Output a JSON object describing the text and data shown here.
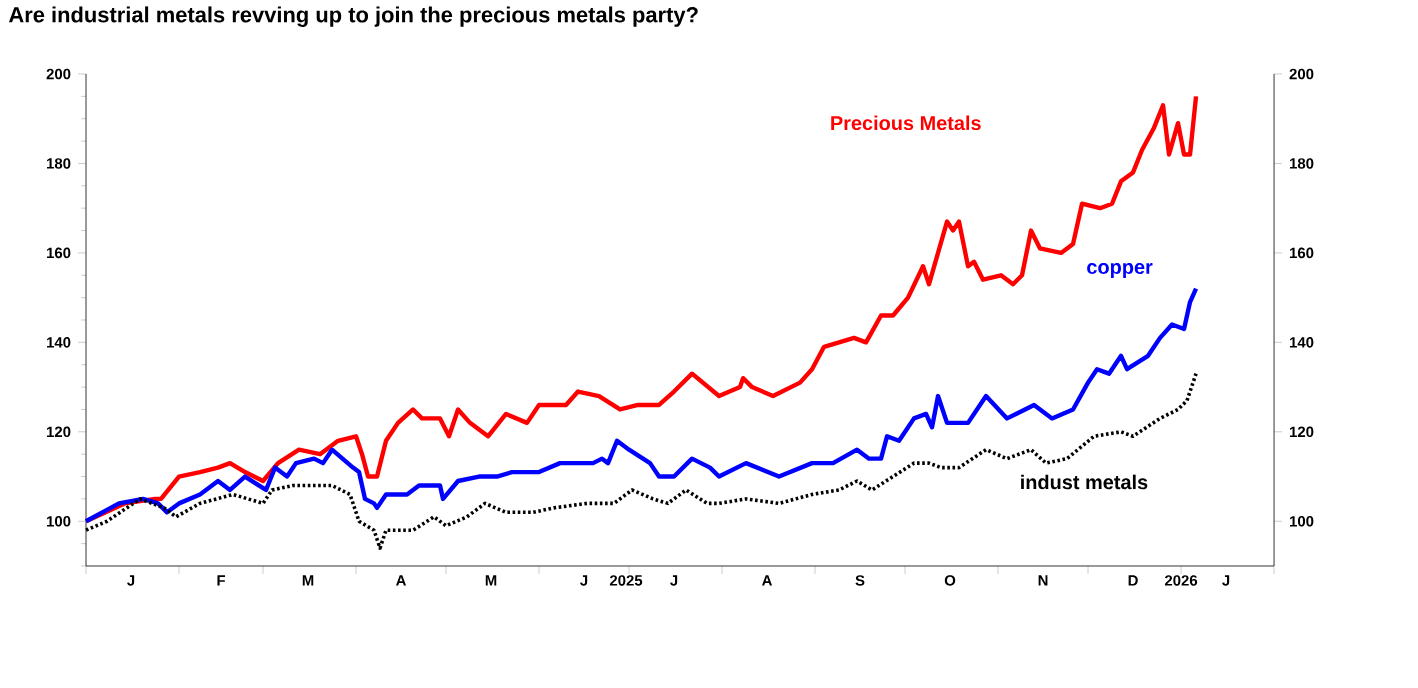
{
  "chart_data": {
    "type": "line",
    "title": "Are industrial metals revving up to join the precious metals party?",
    "xlim": [
      "2025-01-01",
      "2026-02-01"
    ],
    "xticks": [
      {
        "value": "2025-01-01",
        "label": null
      },
      {
        "value": "2025-02-01",
        "label": null
      },
      {
        "value": "2025-03-01",
        "label": null
      },
      {
        "value": "2025-04-01",
        "label": null
      },
      {
        "value": "2025-05-01",
        "label": null
      },
      {
        "value": "2025-06-01",
        "label": null
      },
      {
        "value": "2025-07-01",
        "label": null
      },
      {
        "value": "2025-08-01",
        "label": null
      },
      {
        "value": "2025-09-01",
        "label": null
      },
      {
        "value": "2025-10-01",
        "label": null
      },
      {
        "value": "2025-11-01",
        "label": null
      },
      {
        "value": "2025-12-01",
        "label": null
      },
      {
        "value": "2026-01-01",
        "label": null
      },
      {
        "value": "2026-02-01",
        "label": null
      },
      {
        "value": "2025-01-16",
        "label": "J"
      },
      {
        "value": "2025-02-15",
        "label": "F"
      },
      {
        "value": "2025-03-16",
        "label": "M"
      },
      {
        "value": "2025-04-16",
        "label": "A"
      },
      {
        "value": "2025-05-16",
        "label": "M"
      },
      {
        "value": "2025-06-16",
        "label": "J"
      },
      {
        "value": "2025-07-16",
        "label": "J"
      },
      {
        "value": "2025-08-16",
        "label": "A"
      },
      {
        "value": "2025-09-16",
        "label": "S"
      },
      {
        "value": "2025-10-16",
        "label": "O"
      },
      {
        "value": "2025-11-16",
        "label": "N"
      },
      {
        "value": "2025-12-16",
        "label": "D"
      },
      {
        "value": "2026-01-16",
        "label": "J"
      },
      {
        "value": "2025-06-30",
        "label": "2025"
      },
      {
        "value": "2026-01-01",
        "label": "2026"
      }
    ],
    "ylim": [
      90,
      200
    ],
    "yticks": [
      100,
      120,
      140,
      160,
      180,
      200,
      {
        "value": 90,
        "label": null
      },
      {
        "value": 95,
        "label": null
      },
      {
        "value": 105,
        "label": null
      },
      {
        "value": 110,
        "label": null
      },
      {
        "value": 115,
        "label": null
      },
      {
        "value": 125,
        "label": null
      },
      {
        "value": 130,
        "label": null
      },
      {
        "value": 135,
        "label": null
      },
      {
        "value": 145,
        "label": null
      },
      {
        "value": 150,
        "label": null
      },
      {
        "value": 155,
        "label": null
      },
      {
        "value": 165,
        "label": null
      },
      {
        "value": 170,
        "label": null
      },
      {
        "value": 175,
        "label": null
      },
      {
        "value": 185,
        "label": null
      },
      {
        "value": 190,
        "label": null
      },
      {
        "value": 195,
        "label": null
      }
    ],
    "y2lim": [
      90,
      200
    ],
    "y2ticks": [
      100,
      120,
      140,
      160,
      180,
      200
    ],
    "series": [
      {
        "name": "Precious Metals",
        "color": "#ff0000",
        "line_style": "solid",
        "x": [
          "2025-01-01",
          "2025-01-14",
          "2025-01-24",
          "2025-01-26",
          "2025-02-01",
          "2025-02-08",
          "2025-02-14",
          "2025-02-18",
          "2025-02-23",
          "2025-03-01",
          "2025-03-06",
          "2025-03-13",
          "2025-03-20",
          "2025-03-26",
          "2025-04-01",
          "2025-04-03",
          "2025-04-05",
          "2025-04-08",
          "2025-04-11",
          "2025-04-15",
          "2025-04-20",
          "2025-04-23",
          "2025-04-29",
          "2025-05-02",
          "2025-05-05",
          "2025-05-09",
          "2025-05-15",
          "2025-05-21",
          "2025-05-28",
          "2025-06-01",
          "2025-06-10",
          "2025-06-14",
          "2025-06-21",
          "2025-06-28",
          "2025-07-04",
          "2025-07-11",
          "2025-07-16",
          "2025-07-22",
          "2025-07-31",
          "2025-08-07",
          "2025-08-08",
          "2025-08-11",
          "2025-08-18",
          "2025-08-27",
          "2025-08-31",
          "2025-09-04",
          "2025-09-09",
          "2025-09-14",
          "2025-09-18",
          "2025-09-23",
          "2025-09-27",
          "2025-10-02",
          "2025-10-07",
          "2025-10-09",
          "2025-10-12",
          "2025-10-15",
          "2025-10-17",
          "2025-10-19",
          "2025-10-22",
          "2025-10-24",
          "2025-10-27",
          "2025-11-02",
          "2025-11-06",
          "2025-11-09",
          "2025-11-12",
          "2025-11-15",
          "2025-11-22",
          "2025-11-26",
          "2025-11-29",
          "2025-12-05",
          "2025-12-09",
          "2025-12-12",
          "2025-12-16",
          "2025-12-19",
          "2025-12-23",
          "2025-12-26",
          "2025-12-28",
          "2025-12-31",
          "2026-01-02",
          "2026-01-04",
          "2026-01-06"
        ],
        "values": [
          100,
          104,
          105,
          105,
          110,
          111,
          112,
          113,
          111,
          109,
          113,
          116,
          115,
          118,
          119,
          115,
          110,
          110,
          118,
          122,
          125,
          123,
          123,
          119,
          125,
          122,
          119,
          124,
          122,
          126,
          126,
          129,
          128,
          125,
          126,
          126,
          129,
          133,
          128,
          130,
          132,
          130,
          128,
          131,
          134,
          139,
          140,
          141,
          140,
          146,
          146,
          150,
          157,
          153,
          160,
          167,
          165,
          167,
          157,
          158,
          154,
          155,
          153,
          155,
          165,
          161,
          160,
          162,
          171,
          170,
          171,
          176,
          178,
          183,
          188,
          193,
          182,
          189,
          182,
          182,
          195
        ]
      },
      {
        "name": "copper",
        "color": "#0000ff",
        "line_style": "solid",
        "x": [
          "2025-01-01",
          "2025-01-12",
          "2025-01-20",
          "2025-01-25",
          "2025-01-28",
          "2025-02-01",
          "2025-02-08",
          "2025-02-14",
          "2025-02-18",
          "2025-02-23",
          "2025-03-02",
          "2025-03-05",
          "2025-03-09",
          "2025-03-12",
          "2025-03-18",
          "2025-03-21",
          "2025-03-24",
          "2025-03-31",
          "2025-04-02",
          "2025-04-04",
          "2025-04-07",
          "2025-04-08",
          "2025-04-11",
          "2025-04-18",
          "2025-04-22",
          "2025-04-29",
          "2025-04-30",
          "2025-05-05",
          "2025-05-12",
          "2025-05-18",
          "2025-05-23",
          "2025-06-01",
          "2025-06-08",
          "2025-06-12",
          "2025-06-19",
          "2025-06-22",
          "2025-06-24",
          "2025-06-27",
          "2025-07-01",
          "2025-07-08",
          "2025-07-11",
          "2025-07-16",
          "2025-07-22",
          "2025-07-28",
          "2025-07-31",
          "2025-08-09",
          "2025-08-20",
          "2025-08-31",
          "2025-09-07",
          "2025-09-15",
          "2025-09-19",
          "2025-09-23",
          "2025-09-25",
          "2025-09-29",
          "2025-10-04",
          "2025-10-08",
          "2025-10-10",
          "2025-10-12",
          "2025-10-15",
          "2025-10-22",
          "2025-10-28",
          "2025-11-04",
          "2025-11-13",
          "2025-11-19",
          "2025-11-26",
          "2025-12-01",
          "2025-12-04",
          "2025-12-08",
          "2025-12-12",
          "2025-12-14",
          "2025-12-21",
          "2025-12-25",
          "2025-12-29",
          "2026-01-02",
          "2026-01-04",
          "2026-01-06"
        ],
        "values": [
          100,
          104,
          105,
          104,
          102,
          104,
          106,
          109,
          107,
          110,
          107,
          112,
          110,
          113,
          114,
          113,
          116,
          112,
          111,
          105,
          104,
          103,
          106,
          106,
          108,
          108,
          105,
          109,
          110,
          110,
          111,
          111,
          113,
          113,
          113,
          114,
          113,
          118,
          116,
          113,
          110,
          110,
          114,
          112,
          110,
          113,
          110,
          113,
          113,
          116,
          114,
          114,
          119,
          118,
          123,
          124,
          121,
          128,
          122,
          122,
          128,
          123,
          126,
          123,
          125,
          131,
          134,
          133,
          137,
          134,
          137,
          141,
          144,
          143,
          149,
          152
        ]
      },
      {
        "name": "indust metals",
        "color": "#000000",
        "line_style": "dotted",
        "x": [
          "2025-01-01",
          "2025-01-08",
          "2025-01-19",
          "2025-01-27",
          "2025-01-31",
          "2025-02-08",
          "2025-02-19",
          "2025-03-01",
          "2025-03-04",
          "2025-03-11",
          "2025-03-24",
          "2025-03-30",
          "2025-04-02",
          "2025-04-07",
          "2025-04-09",
          "2025-04-11",
          "2025-04-20",
          "2025-04-27",
          "2025-05-01",
          "2025-05-08",
          "2025-05-14",
          "2025-05-21",
          "2025-05-30",
          "2025-06-06",
          "2025-06-17",
          "2025-06-26",
          "2025-07-02",
          "2025-07-09",
          "2025-07-14",
          "2025-07-20",
          "2025-07-27",
          "2025-07-31",
          "2025-08-09",
          "2025-08-20",
          "2025-08-31",
          "2025-09-09",
          "2025-09-15",
          "2025-09-20",
          "2025-09-27",
          "2025-10-04",
          "2025-10-09",
          "2025-10-13",
          "2025-10-19",
          "2025-10-28",
          "2025-11-04",
          "2025-11-12",
          "2025-11-17",
          "2025-11-24",
          "2025-12-03",
          "2025-12-12",
          "2025-12-16",
          "2025-12-25",
          "2025-12-31",
          "2026-01-03",
          "2026-01-06"
        ],
        "values": [
          98,
          100,
          105,
          103,
          101,
          104,
          106,
          104,
          107,
          108,
          108,
          106,
          100,
          98,
          94,
          98,
          98,
          101,
          99,
          101,
          104,
          102,
          102,
          103,
          104,
          104,
          107,
          105,
          104,
          107,
          104,
          104,
          105,
          104,
          106,
          107,
          109,
          107,
          110,
          113,
          113,
          112,
          112,
          116,
          114,
          116,
          113,
          114,
          119,
          120,
          119,
          123,
          125,
          127,
          133
        ]
      }
    ]
  }
}
